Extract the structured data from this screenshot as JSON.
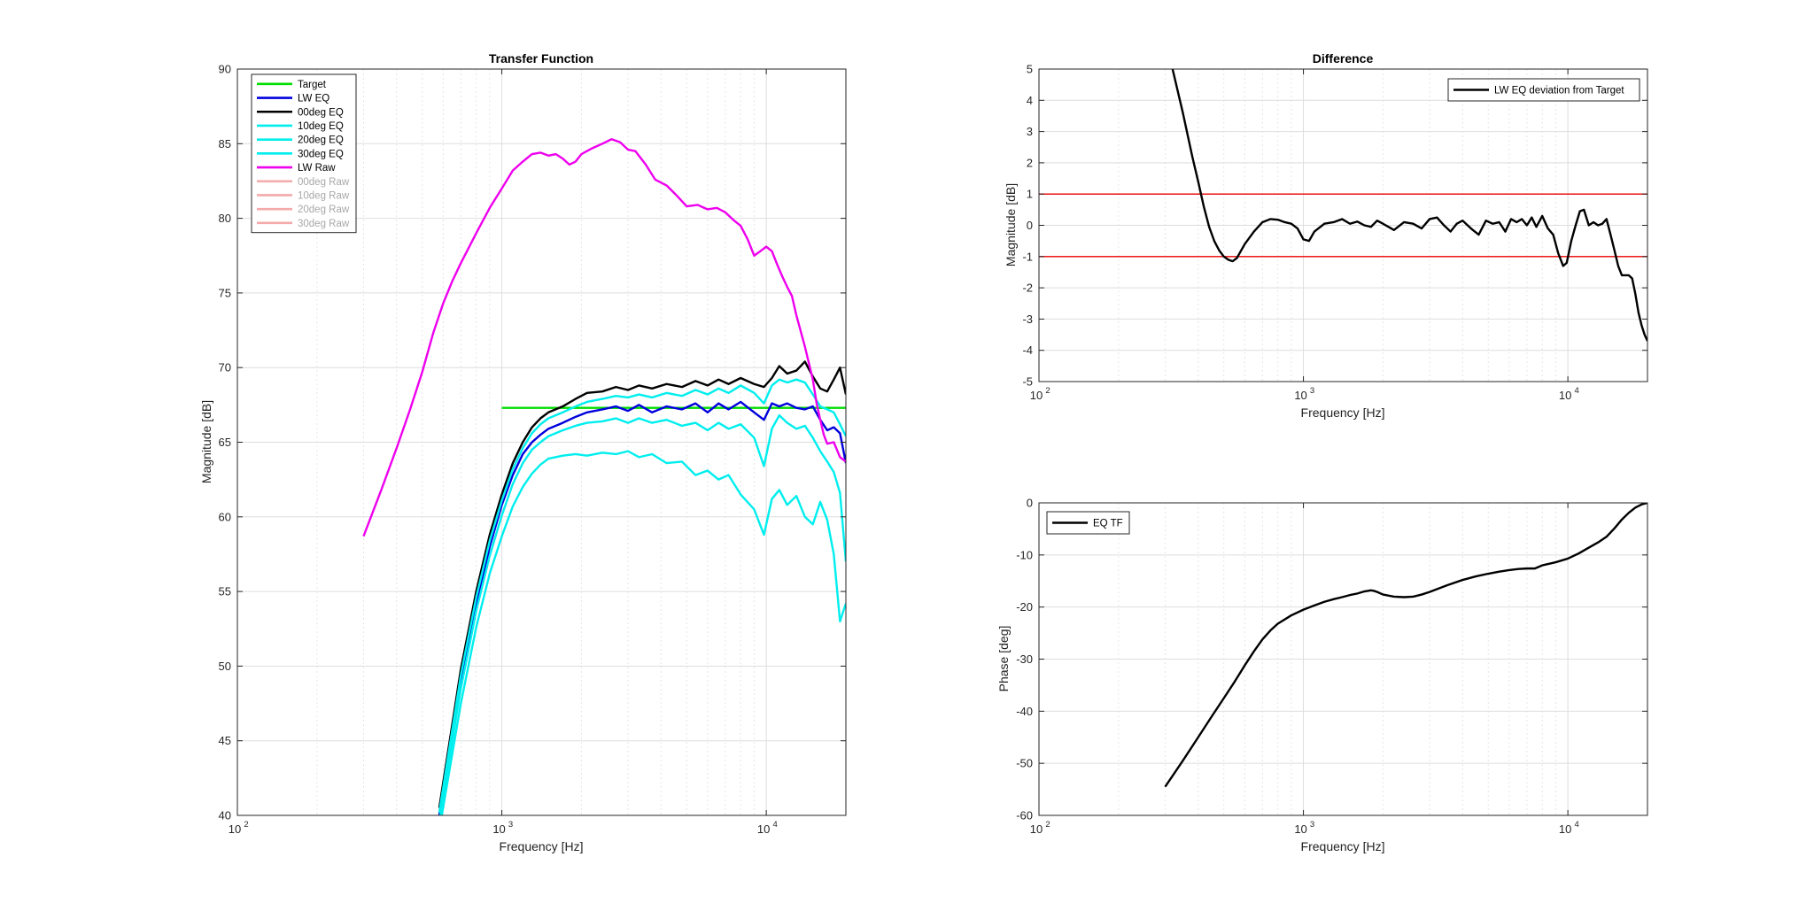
{
  "chart_data": [
    {
      "type": "line",
      "title": "Transfer Function",
      "xlabel": "Frequency [Hz]",
      "ylabel": "Magnitude [dB]",
      "xscale": "log",
      "xlim": [
        100,
        20000
      ],
      "ylim": [
        40,
        90
      ],
      "yticks": [
        40,
        45,
        50,
        55,
        60,
        65,
        70,
        75,
        80,
        85,
        90
      ],
      "xtick_labels": [
        {
          "base": "10",
          "exp": "2"
        },
        {
          "base": "10",
          "exp": "3"
        },
        {
          "base": "10",
          "exp": "4"
        }
      ],
      "grid": true,
      "legend_position": "top-left",
      "series": [
        {
          "name": "Target",
          "color": "#00dd00",
          "legend_text_color": "#000000",
          "x": [
            1000,
            1500,
            2000,
            3000,
            5000,
            8000,
            12000,
            20000
          ],
          "y": [
            67.3,
            67.3,
            67.3,
            67.3,
            67.3,
            67.3,
            67.3,
            67.3
          ]
        },
        {
          "name": "LW EQ",
          "color": "#0000dd",
          "legend_text_color": "#000000",
          "x": [
            580,
            700,
            800,
            900,
            1000,
            1100,
            1200,
            1300,
            1400,
            1500,
            1700,
            1900,
            2100,
            2400,
            2700,
            3000,
            3300,
            3700,
            4200,
            4800,
            5400,
            6000,
            6600,
            7200,
            8000,
            9000,
            9800,
            10500,
            11200,
            12000,
            13000,
            14000,
            15000,
            16000,
            17000,
            18000,
            19000,
            20000
          ],
          "y": [
            40,
            49,
            54,
            58,
            60.8,
            62.8,
            64.2,
            65,
            65.5,
            65.9,
            66.3,
            66.7,
            67,
            67.2,
            67.4,
            67.1,
            67.5,
            67.0,
            67.4,
            67.2,
            67.6,
            67.0,
            67.6,
            67.2,
            67.7,
            67.0,
            66.5,
            67.6,
            67.4,
            67.6,
            67.3,
            67.2,
            67.4,
            66.5,
            65.8,
            66.0,
            65.6,
            63.6
          ]
        },
        {
          "name": "00deg EQ",
          "color": "#000000",
          "legend_text_color": "#000000",
          "x": [
            580,
            700,
            800,
            900,
            1000,
            1100,
            1200,
            1300,
            1400,
            1500,
            1700,
            1900,
            2100,
            2400,
            2700,
            3000,
            3300,
            3700,
            4200,
            4800,
            5400,
            6000,
            6600,
            7200,
            8000,
            9000,
            9800,
            10500,
            11200,
            12000,
            13000,
            14000,
            15000,
            16000,
            17000,
            18000,
            19000,
            20000
          ],
          "y": [
            40.5,
            49.8,
            55,
            58.8,
            61.5,
            63.6,
            65,
            66,
            66.6,
            67,
            67.4,
            67.9,
            68.3,
            68.4,
            68.7,
            68.5,
            68.8,
            68.6,
            68.9,
            68.7,
            69.1,
            68.8,
            69.2,
            68.9,
            69.3,
            68.9,
            68.7,
            69.3,
            70.1,
            69.6,
            69.8,
            70.4,
            69.4,
            68.6,
            68.4,
            69.2,
            70.0,
            68.2
          ]
        },
        {
          "name": "10deg EQ",
          "color": "#00eeee",
          "legend_text_color": "#000000",
          "x": [
            580,
            700,
            800,
            900,
            1000,
            1100,
            1200,
            1300,
            1400,
            1500,
            1700,
            1900,
            2100,
            2400,
            2700,
            3000,
            3300,
            3700,
            4200,
            4800,
            5400,
            6000,
            6600,
            7200,
            8000,
            9000,
            9800,
            10500,
            11200,
            12000,
            13000,
            14000,
            15000,
            16000,
            17000,
            18000,
            19000,
            20000
          ],
          "y": [
            40.2,
            49.4,
            54.6,
            58.4,
            61.1,
            63.2,
            64.6,
            65.6,
            66.2,
            66.6,
            67,
            67.4,
            67.7,
            67.9,
            68.1,
            68.0,
            68.2,
            68.0,
            68.3,
            68.1,
            68.5,
            68.2,
            68.6,
            68.3,
            68.8,
            68.3,
            67.6,
            68.8,
            69.2,
            69.0,
            69.2,
            69.0,
            68.2,
            67.4,
            67.2,
            67.0,
            66.2,
            65.4
          ]
        },
        {
          "name": "20deg EQ",
          "color": "#00eeee",
          "legend_text_color": "#000000",
          "x": [
            580,
            700,
            800,
            900,
            1000,
            1100,
            1200,
            1300,
            1400,
            1500,
            1700,
            1900,
            2100,
            2400,
            2700,
            3000,
            3300,
            3700,
            4200,
            4800,
            5400,
            6000,
            6600,
            7200,
            8000,
            9000,
            9800,
            10500,
            11200,
            12000,
            13000,
            14000,
            15000,
            16000,
            17000,
            18000,
            19000,
            20000
          ],
          "y": [
            39.6,
            48.5,
            53.7,
            57.4,
            60.1,
            62.2,
            63.6,
            64.5,
            65,
            65.4,
            65.8,
            66.1,
            66.3,
            66.4,
            66.6,
            66.3,
            66.6,
            66.3,
            66.5,
            66.1,
            66.3,
            65.8,
            66.3,
            65.9,
            66.2,
            65.3,
            63.4,
            65.9,
            66.8,
            66.3,
            65.9,
            66.1,
            65.3,
            64.4,
            63.7,
            63.0,
            61.6,
            57.0
          ]
        },
        {
          "name": "30deg EQ",
          "color": "#00eeee",
          "legend_text_color": "#000000",
          "x": [
            580,
            700,
            800,
            900,
            1000,
            1100,
            1200,
            1300,
            1400,
            1500,
            1700,
            1900,
            2100,
            2400,
            2700,
            3000,
            3300,
            3700,
            4200,
            4800,
            5400,
            6000,
            6600,
            7200,
            8000,
            9000,
            9800,
            10500,
            11200,
            12000,
            13000,
            14000,
            15000,
            16000,
            17000,
            18000,
            19000,
            20000
          ],
          "y": [
            39.0,
            47.5,
            52.6,
            56.2,
            58.7,
            60.7,
            62,
            62.9,
            63.5,
            63.9,
            64.1,
            64.2,
            64.1,
            64.3,
            64.2,
            64.4,
            64.0,
            64.2,
            63.6,
            63.7,
            62.8,
            63.1,
            62.5,
            62.8,
            61.5,
            60.5,
            58.8,
            61.2,
            61.8,
            60.8,
            61.4,
            60.0,
            59.5,
            61.0,
            59.8,
            57.5,
            53.0,
            54.2
          ]
        },
        {
          "name": "LW Raw",
          "color": "#ee00ee",
          "legend_text_color": "#000000",
          "x": [
            300,
            350,
            400,
            450,
            500,
            550,
            600,
            650,
            700,
            800,
            900,
            1000,
            1100,
            1200,
            1300,
            1400,
            1500,
            1600,
            1700,
            1800,
            1900,
            2000,
            2200,
            2400,
            2600,
            2800,
            3000,
            3200,
            3500,
            3800,
            4200,
            4600,
            5000,
            5500,
            6000,
            6500,
            7000,
            7500,
            8000,
            8500,
            9000,
            9500,
            10000,
            10500,
            11000,
            11500,
            12000,
            12500,
            13000,
            14000,
            15000,
            15500,
            16000,
            16500,
            17000,
            18000,
            19000,
            20000
          ],
          "y": [
            58.7,
            61.8,
            64.6,
            67.2,
            69.7,
            72.3,
            74.3,
            75.8,
            77.0,
            79.0,
            80.7,
            82.0,
            83.2,
            83.8,
            84.3,
            84.4,
            84.2,
            84.3,
            84.0,
            83.6,
            83.8,
            84.3,
            84.7,
            85.0,
            85.3,
            85.1,
            84.6,
            84.5,
            83.6,
            82.6,
            82.2,
            81.5,
            80.8,
            80.9,
            80.6,
            80.7,
            80.4,
            79.9,
            79.5,
            78.6,
            77.5,
            77.8,
            78.1,
            77.8,
            76.9,
            76.1,
            75.4,
            74.8,
            73.5,
            71.4,
            69.2,
            67.6,
            66.5,
            65.5,
            64.9,
            65.0,
            64.0,
            63.7
          ]
        },
        {
          "name": "00deg Raw",
          "color": "#f4aaaa",
          "legend_text_color": "#a8a8a8",
          "x": [],
          "y": []
        },
        {
          "name": "10deg Raw",
          "color": "#f4aaaa",
          "legend_text_color": "#a8a8a8",
          "x": [],
          "y": []
        },
        {
          "name": "20deg Raw",
          "color": "#f4aaaa",
          "legend_text_color": "#a8a8a8",
          "x": [],
          "y": []
        },
        {
          "name": "30deg Raw",
          "color": "#f4aaaa",
          "legend_text_color": "#a8a8a8",
          "x": [],
          "y": []
        }
      ]
    },
    {
      "type": "line",
      "title": "Difference",
      "xlabel": "Frequency [Hz]",
      "ylabel": "Magnitude [dB]",
      "xscale": "log",
      "xlim": [
        100,
        20000
      ],
      "ylim": [
        -5,
        5
      ],
      "yticks": [
        -5,
        -4,
        -3,
        -2,
        -1,
        0,
        1,
        2,
        3,
        4,
        5
      ],
      "xtick_labels": [
        {
          "base": "10",
          "exp": "2"
        },
        {
          "base": "10",
          "exp": "3"
        },
        {
          "base": "10",
          "exp": "4"
        }
      ],
      "grid": true,
      "legend_position": "top-right",
      "reference_lines": [
        {
          "y": 1,
          "color": "#ee0000"
        },
        {
          "y": -1,
          "color": "#ee0000"
        }
      ],
      "series": [
        {
          "name": "LW EQ deviation from Target",
          "color": "#000000",
          "legend_text_color": "#000000",
          "x": [
            320,
            350,
            380,
            400,
            420,
            440,
            460,
            480,
            500,
            520,
            540,
            560,
            600,
            650,
            700,
            750,
            800,
            850,
            900,
            950,
            1000,
            1050,
            1100,
            1200,
            1300,
            1400,
            1500,
            1600,
            1700,
            1800,
            1900,
            2000,
            2200,
            2400,
            2600,
            2800,
            3000,
            3200,
            3400,
            3600,
            3800,
            4000,
            4300,
            4600,
            4900,
            5200,
            5500,
            5800,
            6100,
            6400,
            6700,
            7000,
            7300,
            7600,
            8000,
            8400,
            8800,
            9200,
            9600,
            9900,
            10300,
            10700,
            11100,
            11500,
            12000,
            12500,
            13000,
            13500,
            14000,
            14500,
            15000,
            15500,
            16000,
            16500,
            17000,
            17500,
            18000,
            18500,
            19000,
            19500,
            20000
          ],
          "y": [
            5.0,
            3.6,
            2.2,
            1.4,
            0.6,
            -0.05,
            -0.5,
            -0.8,
            -1.0,
            -1.1,
            -1.15,
            -1.05,
            -0.6,
            -0.2,
            0.1,
            0.2,
            0.18,
            0.1,
            0.05,
            -0.1,
            -0.45,
            -0.5,
            -0.2,
            0.05,
            0.1,
            0.2,
            0.05,
            0.12,
            0.0,
            -0.05,
            0.15,
            0.05,
            -0.15,
            0.1,
            0.05,
            -0.1,
            0.2,
            0.25,
            0.0,
            -0.2,
            0.05,
            0.15,
            -0.1,
            -0.3,
            0.15,
            0.05,
            0.1,
            -0.2,
            0.2,
            0.1,
            0.2,
            0.0,
            0.25,
            -0.05,
            0.3,
            -0.1,
            -0.3,
            -0.9,
            -1.3,
            -1.2,
            -0.5,
            0.0,
            0.45,
            0.5,
            0.0,
            0.1,
            0.0,
            0.05,
            0.2,
            -0.3,
            -0.8,
            -1.3,
            -1.6,
            -1.6,
            -1.6,
            -1.7,
            -2.2,
            -2.8,
            -3.2,
            -3.5,
            -3.7
          ]
        }
      ]
    },
    {
      "type": "line",
      "title": "",
      "xlabel": "Frequency [Hz]",
      "ylabel": "Phase [deg]",
      "xscale": "log",
      "xlim": [
        100,
        20000
      ],
      "ylim": [
        -60,
        0
      ],
      "yticks": [
        -60,
        -50,
        -40,
        -30,
        -20,
        -10,
        0
      ],
      "xtick_labels": [
        {
          "base": "10",
          "exp": "2"
        },
        {
          "base": "10",
          "exp": "3"
        },
        {
          "base": "10",
          "exp": "4"
        }
      ],
      "grid": true,
      "legend_position": "top-left",
      "series": [
        {
          "name": "EQ TF",
          "color": "#000000",
          "legend_text_color": "#000000",
          "x": [
            300,
            350,
            400,
            450,
            500,
            550,
            600,
            650,
            700,
            750,
            800,
            900,
            1000,
            1100,
            1200,
            1300,
            1400,
            1500,
            1600,
            1700,
            1800,
            1850,
            1900,
            2000,
            2200,
            2400,
            2600,
            2800,
            3000,
            3500,
            4000,
            4500,
            5000,
            5500,
            6000,
            6500,
            7000,
            7500,
            8000,
            9000,
            10000,
            11000,
            12000,
            13000,
            14000,
            15000,
            16000,
            17000,
            18000,
            19000,
            20000
          ],
          "y": [
            -54.5,
            -49.5,
            -45,
            -41,
            -37.5,
            -34.3,
            -31.2,
            -28.5,
            -26.2,
            -24.5,
            -23.2,
            -21.6,
            -20.5,
            -19.7,
            -19.0,
            -18.5,
            -18.1,
            -17.7,
            -17.4,
            -17.0,
            -16.8,
            -16.9,
            -17.1,
            -17.6,
            -18.0,
            -18.1,
            -18.0,
            -17.6,
            -17.1,
            -15.8,
            -14.8,
            -14.1,
            -13.6,
            -13.2,
            -12.9,
            -12.7,
            -12.6,
            -12.6,
            -12.0,
            -11.4,
            -10.7,
            -9.7,
            -8.6,
            -7.6,
            -6.5,
            -4.9,
            -3.2,
            -1.9,
            -0.9,
            -0.3,
            0
          ]
        }
      ]
    }
  ]
}
